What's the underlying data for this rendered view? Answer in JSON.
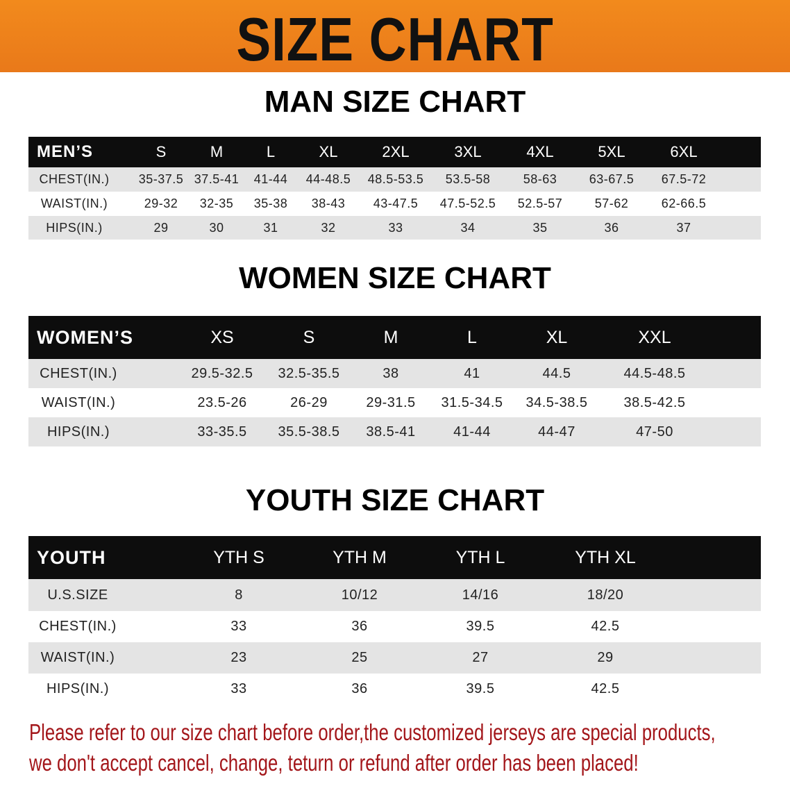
{
  "banner": {
    "title": "SIZE CHART",
    "color": "#ef8419"
  },
  "men": {
    "title": "MAN SIZE CHART",
    "header": [
      "MEN’S",
      "S",
      "M",
      "L",
      "XL",
      "2XL",
      "3XL",
      "4XL",
      "5XL",
      "6XL"
    ],
    "rows": [
      [
        "CHEST(IN.)",
        "35-37.5",
        "37.5-41",
        "41-44",
        "44-48.5",
        "48.5-53.5",
        "53.5-58",
        "58-63",
        "63-67.5",
        "67.5-72"
      ],
      [
        "WAIST(IN.)",
        "29-32",
        "32-35",
        "35-38",
        "38-43",
        "43-47.5",
        "47.5-52.5",
        "52.5-57",
        "57-62",
        "62-66.5"
      ],
      [
        "HIPS(IN.)",
        "29",
        "30",
        "31",
        "32",
        "33",
        "34",
        "35",
        "36",
        "37"
      ]
    ]
  },
  "women": {
    "title": "WOMEN SIZE CHART",
    "header": [
      "WOMEN’S",
      "XS",
      "S",
      "M",
      "L",
      "XL",
      "XXL"
    ],
    "rows": [
      [
        "CHEST(IN.)",
        "29.5-32.5",
        "32.5-35.5",
        "38",
        "41",
        "44.5",
        "44.5-48.5"
      ],
      [
        "WAIST(IN.)",
        "23.5-26",
        "26-29",
        "29-31.5",
        "31.5-34.5",
        "34.5-38.5",
        "38.5-42.5"
      ],
      [
        "HIPS(IN.)",
        "33-35.5",
        "35.5-38.5",
        "38.5-41",
        "41-44",
        "44-47",
        "47-50"
      ]
    ]
  },
  "youth": {
    "title": "YOUTH SIZE CHART",
    "header": [
      "YOUTH",
      "YTH S",
      "YTH M",
      "YTH L",
      "YTH XL"
    ],
    "rows": [
      [
        "U.S.SIZE",
        "8",
        "10/12",
        "14/16",
        "18/20"
      ],
      [
        "CHEST(IN.)",
        "33",
        "36",
        "39.5",
        "42.5"
      ],
      [
        "WAIST(IN.)",
        "23",
        "25",
        "27",
        "29"
      ],
      [
        "HIPS(IN.)",
        "33",
        "36",
        "39.5",
        "42.5"
      ]
    ]
  },
  "notice": {
    "line1": "Please refer to our size chart before order,the customized jerseys are special products,",
    "line2": "we don't accept cancel, change, teturn or refund after order has been placed!",
    "color": "#a3161a"
  }
}
